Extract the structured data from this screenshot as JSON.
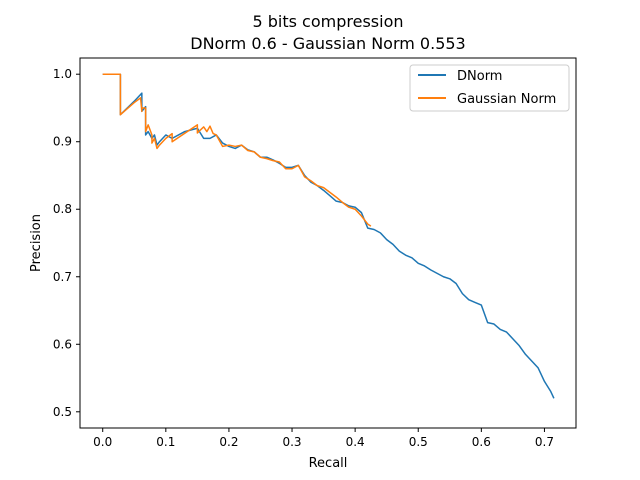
{
  "chart_data": {
    "type": "line",
    "title": "5 bits compression",
    "subtitle": "DNorm 0.6 - Gaussian Norm 0.553",
    "xlabel": "Recall",
    "ylabel": "Precision",
    "xlim": [
      -0.036,
      0.75
    ],
    "ylim": [
      0.476,
      1.024
    ],
    "xticks": [
      0.0,
      0.1,
      0.2,
      0.3,
      0.4,
      0.5,
      0.6,
      0.7
    ],
    "xtick_labels": [
      "0.0",
      "0.1",
      "0.2",
      "0.3",
      "0.4",
      "0.5",
      "0.6",
      "0.7"
    ],
    "yticks": [
      0.5,
      0.6,
      0.7,
      0.8,
      0.9,
      1.0
    ],
    "ytick_labels": [
      "0.5",
      "0.6",
      "0.7",
      "0.8",
      "0.9",
      "1.0"
    ],
    "grid": false,
    "legend": "top-right",
    "series": [
      {
        "name": "DNorm",
        "color": "#1f77b4",
        "x": [
          0.0,
          0.028,
          0.028,
          0.05,
          0.062,
          0.062,
          0.068,
          0.068,
          0.072,
          0.078,
          0.082,
          0.086,
          0.09,
          0.1,
          0.11,
          0.13,
          0.15,
          0.16,
          0.17,
          0.18,
          0.19,
          0.2,
          0.21,
          0.22,
          0.23,
          0.24,
          0.25,
          0.26,
          0.27,
          0.28,
          0.29,
          0.3,
          0.31,
          0.32,
          0.33,
          0.34,
          0.35,
          0.36,
          0.37,
          0.38,
          0.39,
          0.4,
          0.41,
          0.42,
          0.43,
          0.44,
          0.45,
          0.46,
          0.47,
          0.48,
          0.49,
          0.5,
          0.51,
          0.52,
          0.53,
          0.54,
          0.55,
          0.56,
          0.57,
          0.58,
          0.59,
          0.6,
          0.61,
          0.62,
          0.63,
          0.64,
          0.65,
          0.66,
          0.67,
          0.68,
          0.69,
          0.7,
          0.71,
          0.715
        ],
        "y": [
          1.0,
          1.0,
          0.94,
          0.96,
          0.972,
          0.945,
          0.952,
          0.91,
          0.915,
          0.905,
          0.91,
          0.895,
          0.9,
          0.91,
          0.905,
          0.915,
          0.92,
          0.905,
          0.905,
          0.91,
          0.898,
          0.893,
          0.89,
          0.895,
          0.888,
          0.885,
          0.877,
          0.877,
          0.873,
          0.868,
          0.862,
          0.862,
          0.865,
          0.85,
          0.84,
          0.835,
          0.828,
          0.82,
          0.812,
          0.81,
          0.805,
          0.803,
          0.795,
          0.772,
          0.77,
          0.765,
          0.755,
          0.748,
          0.738,
          0.732,
          0.728,
          0.72,
          0.716,
          0.71,
          0.705,
          0.7,
          0.697,
          0.69,
          0.675,
          0.666,
          0.662,
          0.658,
          0.632,
          0.63,
          0.622,
          0.618,
          0.608,
          0.598,
          0.585,
          0.575,
          0.565,
          0.545,
          0.53,
          0.52
        ]
      },
      {
        "name": "Gaussian Norm",
        "color": "#ff7f0e",
        "x": [
          0.0,
          0.028,
          0.028,
          0.05,
          0.06,
          0.062,
          0.062,
          0.068,
          0.068,
          0.072,
          0.078,
          0.078,
          0.082,
          0.086,
          0.09,
          0.1,
          0.11,
          0.11,
          0.15,
          0.15,
          0.16,
          0.165,
          0.17,
          0.175,
          0.18,
          0.19,
          0.2,
          0.21,
          0.22,
          0.23,
          0.24,
          0.25,
          0.26,
          0.27,
          0.28,
          0.29,
          0.3,
          0.31,
          0.32,
          0.33,
          0.34,
          0.35,
          0.36,
          0.37,
          0.38,
          0.39,
          0.4,
          0.41,
          0.42,
          0.425
        ],
        "y": [
          1.0,
          1.0,
          0.94,
          0.958,
          0.965,
          0.945,
          0.95,
          0.95,
          0.915,
          0.925,
          0.91,
          0.898,
          0.905,
          0.89,
          0.895,
          0.905,
          0.912,
          0.9,
          0.925,
          0.913,
          0.922,
          0.915,
          0.923,
          0.912,
          0.91,
          0.893,
          0.895,
          0.893,
          0.895,
          0.887,
          0.885,
          0.877,
          0.875,
          0.872,
          0.87,
          0.86,
          0.86,
          0.865,
          0.848,
          0.842,
          0.835,
          0.832,
          0.825,
          0.818,
          0.81,
          0.803,
          0.8,
          0.79,
          0.778,
          0.775
        ]
      }
    ]
  }
}
